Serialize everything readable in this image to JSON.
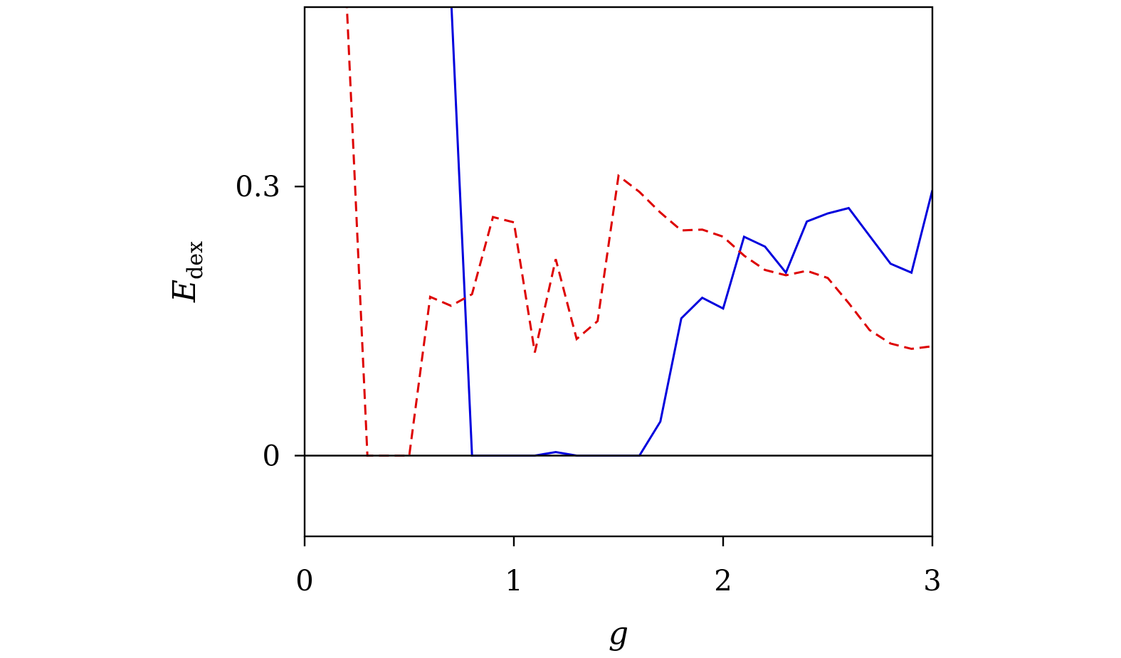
{
  "chart_data": {
    "type": "line",
    "title": "",
    "xlabel": "g",
    "ylabel": "E",
    "ylabel_sub": "dex",
    "xlim": [
      0,
      3
    ],
    "ylim": [
      -0.09,
      0.5
    ],
    "x_ticks": [
      0,
      1,
      2,
      3
    ],
    "x_tick_labels": [
      "0",
      "1",
      "2",
      "3"
    ],
    "y_ticks": [
      0,
      0.3
    ],
    "y_tick_labels": [
      "0",
      "0.3"
    ],
    "zero_line": true,
    "grid": false,
    "series": [
      {
        "style": "solid",
        "color": "#0000dd",
        "x": [
          0.7,
          0.8,
          0.9,
          1.0,
          1.1,
          1.2,
          1.3,
          1.4,
          1.5,
          1.6,
          1.7,
          1.8,
          1.9,
          2.0,
          2.1,
          2.2,
          2.3,
          2.4,
          2.5,
          2.6,
          2.7,
          2.8,
          2.9,
          3.0
        ],
        "y": [
          0.51,
          0.0,
          0.0,
          0.0,
          0.0,
          0.004,
          0.0,
          0.0,
          0.0,
          0.0,
          0.038,
          0.153,
          0.176,
          0.164,
          0.244,
          0.233,
          0.204,
          0.261,
          0.27,
          0.276,
          0.245,
          0.214,
          0.204,
          0.296
        ]
      },
      {
        "style": "dashed",
        "color": "#dd0000",
        "x": [
          0.2,
          0.3,
          0.4,
          0.5,
          0.6,
          0.7,
          0.8,
          0.9,
          1.0,
          1.1,
          1.2,
          1.3,
          1.4,
          1.5,
          1.6,
          1.7,
          1.8,
          1.9,
          2.0,
          2.1,
          2.2,
          2.3,
          2.4,
          2.5,
          2.6,
          2.7,
          2.8,
          2.9,
          3.0
        ],
        "y": [
          0.51,
          0.0,
          0.0,
          0.0,
          0.177,
          0.167,
          0.18,
          0.266,
          0.26,
          0.115,
          0.219,
          0.13,
          0.15,
          0.312,
          0.294,
          0.271,
          0.251,
          0.252,
          0.244,
          0.223,
          0.207,
          0.201,
          0.206,
          0.198,
          0.17,
          0.14,
          0.125,
          0.119,
          0.122
        ]
      }
    ]
  }
}
